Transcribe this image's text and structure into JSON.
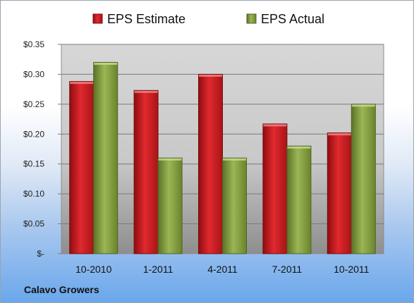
{
  "chart_data": {
    "type": "bar",
    "categories": [
      "10-2010",
      "1-2011",
      "4-2011",
      "7-2011",
      "10-2011"
    ],
    "series": [
      {
        "name": "EPS Estimate",
        "values": [
          0.288,
          0.273,
          0.3,
          0.217,
          0.202
        ],
        "color": "#c0181c"
      },
      {
        "name": "EPS Actual",
        "values": [
          0.32,
          0.16,
          0.16,
          0.18,
          0.25
        ],
        "color": "#7f9a3a"
      }
    ],
    "ylim": [
      0,
      0.35
    ],
    "yticks": [
      0,
      0.05,
      0.1,
      0.15,
      0.2,
      0.25,
      0.3,
      0.35
    ],
    "ytick_labels": [
      "$-",
      "$0.05",
      "$0.10",
      "$0.15",
      "$0.20",
      "$0.25",
      "$0.30",
      "$0.35"
    ],
    "grid": true,
    "legend_position": "top"
  },
  "footer": {
    "company": "Calavo Growers"
  }
}
